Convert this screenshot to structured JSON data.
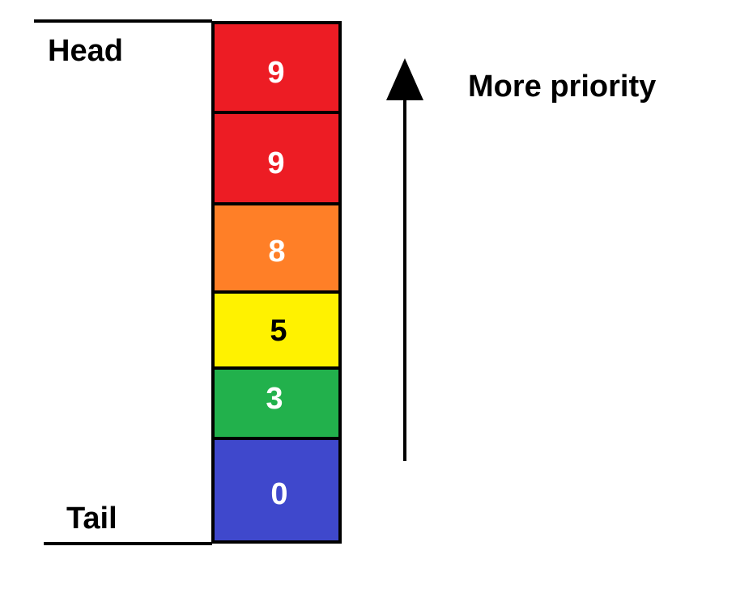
{
  "labels": {
    "head": "Head",
    "tail": "Tail",
    "priority": "More priority"
  },
  "queue": [
    {
      "value": "9",
      "fill": "#ed1c24",
      "text_color": "#ffffff"
    },
    {
      "value": "9",
      "fill": "#ed1c24",
      "text_color": "#ffffff"
    },
    {
      "value": "8",
      "fill": "#ff7f27",
      "text_color": "#ffffff"
    },
    {
      "value": "5",
      "fill": "#fff200",
      "text_color": "#000000"
    },
    {
      "value": "3",
      "fill": "#22b14c",
      "text_color": "#ffffff"
    },
    {
      "value": "0",
      "fill": "#3f48cc",
      "text_color": "#ffffff"
    }
  ],
  "colors": {
    "stroke": "#000000",
    "background": "#ffffff"
  },
  "icons": {
    "arrow": "arrow-up-icon"
  }
}
